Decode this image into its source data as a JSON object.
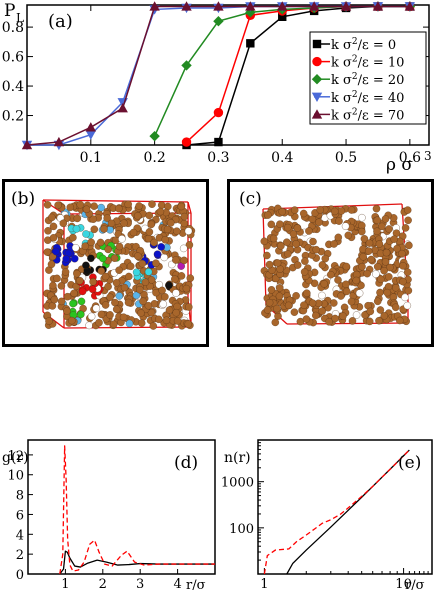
{
  "panels": {
    "a": "(a)",
    "b": "(b)",
    "c": "(c)",
    "d": "(d)",
    "e": "(e)"
  },
  "chart_data": [
    {
      "id": "a",
      "type": "line",
      "ylabel": "P",
      "ylabel_sub": "L",
      "xlabel": "ρ σ",
      "xlabel_sup": "3",
      "xlim": [
        0.0,
        0.63
      ],
      "ylim": [
        0.0,
        0.95
      ],
      "xticks": [
        0.1,
        0.2,
        0.3,
        0.4,
        0.5,
        0.6
      ],
      "yticks": [
        0.2,
        0.4,
        0.6,
        0.8
      ],
      "legend_position": "right",
      "series": [
        {
          "name": "k σ²/ε = 0",
          "legend_main": "k σ",
          "legend_sup": "2",
          "legend_rest": "/ε = 0",
          "color": "#000000",
          "marker": "square",
          "x": [
            0.25,
            0.3,
            0.35,
            0.4,
            0.45,
            0.5,
            0.55,
            0.6
          ],
          "y": [
            0.0,
            0.02,
            0.69,
            0.87,
            0.91,
            0.93,
            0.94,
            0.94
          ]
        },
        {
          "name": "k σ²/ε = 10",
          "legend_main": "k σ",
          "legend_sup": "2",
          "legend_rest": "/ε = 10",
          "color": "#ff0000",
          "marker": "circle",
          "x": [
            0.25,
            0.3,
            0.35,
            0.4,
            0.45,
            0.5,
            0.55,
            0.6
          ],
          "y": [
            0.02,
            0.22,
            0.88,
            0.91,
            0.93,
            0.94,
            0.94,
            0.94
          ]
        },
        {
          "name": "k σ²/ε = 20",
          "legend_main": "k σ",
          "legend_sup": "2",
          "legend_rest": "/ε = 20",
          "color": "#228b22",
          "marker": "diamond",
          "x": [
            0.2,
            0.25,
            0.3,
            0.35,
            0.4,
            0.45,
            0.5,
            0.55,
            0.6
          ],
          "y": [
            0.06,
            0.54,
            0.84,
            0.9,
            0.92,
            0.93,
            0.94,
            0.94,
            0.94
          ]
        },
        {
          "name": "k σ²/ε = 40",
          "legend_main": "k σ",
          "legend_sup": "2",
          "legend_rest": "/ε = 40",
          "color": "#4a6ad8",
          "marker": "triangle-down",
          "x": [
            0.0,
            0.05,
            0.1,
            0.15,
            0.2,
            0.25,
            0.3,
            0.35,
            0.4,
            0.45,
            0.5,
            0.55,
            0.6
          ],
          "y": [
            0.0,
            0.0,
            0.07,
            0.29,
            0.92,
            0.93,
            0.93,
            0.94,
            0.94,
            0.94,
            0.94,
            0.94,
            0.94
          ]
        },
        {
          "name": "k σ²/ε = 70",
          "legend_main": "k σ",
          "legend_sup": "2",
          "legend_rest": "/ε = 70",
          "color": "#6b1030",
          "marker": "triangle-up",
          "x": [
            0.0,
            0.05,
            0.1,
            0.15,
            0.2,
            0.25,
            0.3,
            0.35,
            0.4,
            0.45,
            0.5,
            0.55,
            0.6
          ],
          "y": [
            0.0,
            0.02,
            0.12,
            0.25,
            0.94,
            0.94,
            0.94,
            0.94,
            0.94,
            0.94,
            0.94,
            0.94,
            0.94
          ]
        }
      ]
    },
    {
      "id": "d",
      "type": "line",
      "ylabel": "g(r)",
      "xlabel": "r/σ",
      "xlim": [
        0.0,
        5.0
      ],
      "ylim": [
        0.0,
        13.5
      ],
      "xticks": [
        1,
        2,
        3,
        4
      ],
      "yticks": [
        0,
        2,
        4,
        6,
        8,
        10,
        12
      ],
      "series": [
        {
          "style": "solid",
          "color": "#000000",
          "x": [
            0.85,
            0.95,
            1.0,
            1.05,
            1.12,
            1.25,
            1.4,
            1.6,
            1.85,
            2.1,
            2.4,
            2.7,
            3.0,
            3.5,
            4.0,
            4.5,
            5.0
          ],
          "y": [
            0,
            0.5,
            2.3,
            2.2,
            1.6,
            0.8,
            0.7,
            1.1,
            1.4,
            1.2,
            0.9,
            0.95,
            1.05,
            1.0,
            1.0,
            1.0,
            1.0
          ]
        },
        {
          "style": "dashed",
          "color": "#ff0000",
          "x": [
            0.85,
            0.93,
            0.98,
            1.02,
            1.06,
            1.12,
            1.2,
            1.35,
            1.5,
            1.65,
            1.78,
            1.9,
            2.05,
            2.25,
            2.5,
            2.65,
            2.85,
            3.1,
            3.5,
            4.0,
            4.5,
            5.0
          ],
          "y": [
            0,
            2.0,
            12.9,
            9.5,
            3.5,
            0.9,
            0.3,
            0.4,
            1.2,
            3.0,
            3.4,
            2.2,
            1.0,
            0.8,
            1.9,
            2.3,
            1.2,
            0.9,
            1.0,
            1.0,
            1.0,
            1.0
          ]
        }
      ]
    },
    {
      "id": "e",
      "type": "line",
      "ylabel": "n(r)",
      "xlabel": "r/σ",
      "xscale": "log",
      "yscale": "log",
      "xlim": [
        0.9,
        16
      ],
      "ylim": [
        10,
        8000
      ],
      "xticks": [
        1,
        10
      ],
      "yticks": [
        100,
        1000
      ],
      "series": [
        {
          "style": "solid",
          "color": "#000000",
          "x": [
            1.45,
            1.6,
            2.0,
            3.0,
            4.0,
            5.0,
            6.0,
            7.0,
            8.0,
            9.0,
            10.0,
            11.0
          ],
          "y": [
            10,
            17,
            33,
            104,
            240,
            460,
            790,
            1250,
            1860,
            2650,
            3650,
            4850
          ]
        },
        {
          "style": "dashed",
          "color": "#ff0000",
          "x": [
            1.0,
            1.05,
            1.2,
            1.5,
            1.7,
            2.0,
            2.3,
            2.6,
            3.0,
            3.5,
            4.0,
            5.0,
            6.0,
            7.0,
            8.0,
            9.0,
            10.0,
            11.0
          ],
          "y": [
            10,
            25,
            33,
            35,
            50,
            70,
            95,
            125,
            150,
            195,
            270,
            480,
            790,
            1250,
            1860,
            2650,
            3650,
            4850
          ]
        }
      ]
    }
  ]
}
